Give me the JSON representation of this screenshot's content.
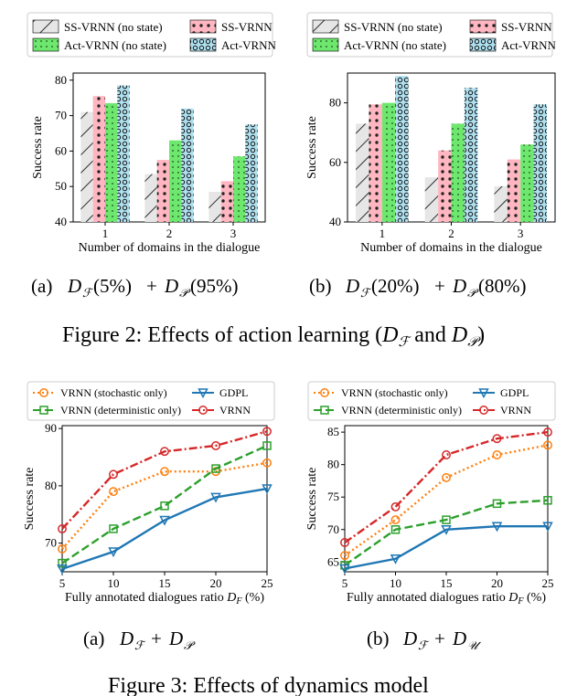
{
  "figure2": {
    "caption_prefix": "Figure 2: Effects of action learning (",
    "caption_a": "D",
    "caption_a_sub": "ℱ",
    "caption_and": " and ",
    "caption_b": "D",
    "caption_b_sub": "𝒫",
    "caption_suffix": ")"
  },
  "figure3": {
    "caption": "Figure 3: Effects of dynamics model"
  },
  "chart_data": [
    {
      "type": "bar",
      "panel": "(a)",
      "subcaption": {
        "label": "(a)",
        "p1": "D",
        "s1": "ℱ",
        "v1": "(5%)",
        "plus": "+",
        "p2": "D",
        "s2": "𝒫",
        "v2": "(95%)"
      },
      "categories": [
        "1",
        "2",
        "3"
      ],
      "xlabel": "Number of domains in the dialogue",
      "ylabel": "Success rate",
      "ylim": [
        40,
        82
      ],
      "yticks": [
        "40",
        "50",
        "60",
        "70",
        "80"
      ],
      "series": [
        {
          "name": "SS-VRNN (no state)",
          "values": [
            71,
            53.5,
            48.5
          ]
        },
        {
          "name": "SS-VRNN",
          "values": [
            75.5,
            57.5,
            51.5
          ]
        },
        {
          "name": "Act-VRNN (no state)",
          "values": [
            73.5,
            63,
            58.5
          ]
        },
        {
          "name": "Act-VRNN",
          "values": [
            78.5,
            72,
            67.5
          ]
        }
      ],
      "legend": "top"
    },
    {
      "type": "bar",
      "panel": "(b)",
      "subcaption": {
        "label": "(b)",
        "p1": "D",
        "s1": "ℱ",
        "v1": "(20%)",
        "plus": "+",
        "p2": "D",
        "s2": "𝒫",
        "v2": "(80%)"
      },
      "categories": [
        "1",
        "2",
        "3"
      ],
      "xlabel": "Number of domains in the dialogue",
      "ylabel": "Success rate",
      "ylim": [
        40,
        90
      ],
      "yticks": [
        "40",
        "60",
        "80"
      ],
      "series": [
        {
          "name": "SS-VRNN (no state)",
          "values": [
            73,
            55,
            52
          ]
        },
        {
          "name": "SS-VRNN",
          "values": [
            79.5,
            64,
            61
          ]
        },
        {
          "name": "Act-VRNN (no state)",
          "values": [
            80,
            73,
            66
          ]
        },
        {
          "name": "Act-VRNN",
          "values": [
            89,
            85,
            79.5
          ]
        }
      ],
      "legend": "top"
    },
    {
      "type": "line",
      "panel": "(a)",
      "subcaption": {
        "label": "(a)",
        "p1": "D",
        "s1": "ℱ",
        "plus": "+",
        "p2": "D",
        "s2": "𝒫"
      },
      "x": [
        5,
        10,
        15,
        20,
        25
      ],
      "xticks": [
        "5",
        "10",
        "15",
        "20",
        "25"
      ],
      "xlabel_prefix": "Fully annotated dialogues ratio ",
      "xlabel_var": "D",
      "xlabel_sub": "F",
      "xlabel_suffix": " (%)",
      "ylabel": "Success rate",
      "ylim": [
        65,
        90.5
      ],
      "yticks": [
        "70",
        "80",
        "90"
      ],
      "series": [
        {
          "name": "VRNN (stochastic only)",
          "color": "#ff7f0e",
          "values": [
            69,
            79,
            82.5,
            82.5,
            84
          ]
        },
        {
          "name": "VRNN (deterministic only)",
          "color": "#2ca02c",
          "values": [
            66.5,
            72.5,
            76.5,
            83,
            87
          ]
        },
        {
          "name": "GDPL",
          "color": "#1f77b4",
          "values": [
            65.5,
            68.5,
            74,
            78,
            79.5
          ]
        },
        {
          "name": "VRNN",
          "color": "#d62728",
          "values": [
            72.5,
            82,
            86,
            87,
            89.5
          ]
        }
      ],
      "legend": "top"
    },
    {
      "type": "line",
      "panel": "(b)",
      "subcaption": {
        "label": "(b)",
        "p1": "D",
        "s1": "ℱ",
        "plus": "+",
        "p2": "D",
        "s2": "𝒰"
      },
      "x": [
        5,
        10,
        15,
        20,
        25
      ],
      "xticks": [
        "5",
        "10",
        "15",
        "20",
        "25"
      ],
      "xlabel_prefix": "Fully annotated dialogues ratio ",
      "xlabel_var": "D",
      "xlabel_sub": "F",
      "xlabel_suffix": " (%)",
      "ylabel": "Success rate",
      "ylim": [
        63.5,
        86
      ],
      "yticks": [
        "65",
        "70",
        "75",
        "80",
        "85"
      ],
      "series": [
        {
          "name": "VRNN (stochastic only)",
          "color": "#ff7f0e",
          "values": [
            66,
            71.5,
            78,
            81.5,
            83
          ]
        },
        {
          "name": "VRNN (deterministic only)",
          "color": "#2ca02c",
          "values": [
            64.5,
            70,
            71.5,
            74,
            74.5
          ]
        },
        {
          "name": "GDPL",
          "color": "#1f77b4",
          "values": [
            64,
            65.5,
            70,
            70.5,
            70.5
          ]
        },
        {
          "name": "VRNN",
          "color": "#d62728",
          "values": [
            68,
            73.5,
            81.5,
            84,
            85
          ]
        }
      ],
      "legend": "top"
    }
  ]
}
